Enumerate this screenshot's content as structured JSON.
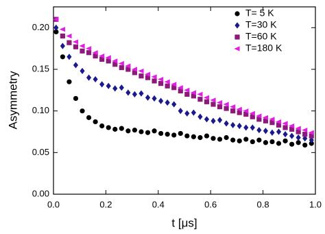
{
  "chart_data": {
    "type": "scatter",
    "xlabel": "t [μs]",
    "ylabel": "Asymmetry",
    "xlim": [
      0,
      1.0
    ],
    "ylim": [
      0,
      0.225
    ],
    "xticks": [
      {
        "value": 0,
        "label": "0.0"
      },
      0.2,
      0.4,
      0.6,
      0.8,
      {
        "value": 1,
        "label": "1.0"
      }
    ],
    "yticks": [
      {
        "value": 0,
        "label": "0.00"
      },
      0.05,
      {
        "value": 0.1,
        "label": "0.10"
      },
      0.15,
      {
        "value": 0.2,
        "label": "0.20"
      }
    ],
    "legend": "upper right",
    "x": [
      0.01,
      0.035,
      0.06,
      0.085,
      0.11,
      0.135,
      0.16,
      0.185,
      0.21,
      0.235,
      0.26,
      0.285,
      0.31,
      0.335,
      0.36,
      0.385,
      0.41,
      0.435,
      0.46,
      0.485,
      0.51,
      0.535,
      0.56,
      0.585,
      0.61,
      0.635,
      0.66,
      0.685,
      0.71,
      0.735,
      0.76,
      0.785,
      0.81,
      0.835,
      0.86,
      0.885,
      0.91,
      0.935,
      0.96,
      0.985
    ],
    "series": [
      {
        "name": "T= 5 K",
        "color": "#000000",
        "marker": "circle",
        "values": [
          0.195,
          0.165,
          0.135,
          0.115,
          0.1,
          0.092,
          0.087,
          0.082,
          0.08,
          0.078,
          0.079,
          0.076,
          0.077,
          0.075,
          0.074,
          0.076,
          0.073,
          0.072,
          0.071,
          0.073,
          0.07,
          0.069,
          0.068,
          0.07,
          0.067,
          0.066,
          0.068,
          0.065,
          0.064,
          0.066,
          0.063,
          0.065,
          0.062,
          0.063,
          0.061,
          0.064,
          0.06,
          0.062,
          0.059,
          0.061
        ]
      },
      {
        "name": "T=30 K",
        "color": "#1a1a8c",
        "marker": "diamond",
        "values": [
          0.2,
          0.178,
          0.165,
          0.155,
          0.148,
          0.14,
          0.138,
          0.132,
          0.13,
          0.127,
          0.128,
          0.122,
          0.12,
          0.121,
          0.116,
          0.115,
          0.112,
          0.11,
          0.108,
          0.1,
          0.097,
          0.098,
          0.093,
          0.09,
          0.088,
          0.089,
          0.085,
          0.083,
          0.082,
          0.08,
          0.08,
          0.077,
          0.076,
          0.074,
          0.075,
          0.072,
          0.07,
          0.068,
          0.067,
          0.065
        ]
      },
      {
        "name": "T=60 K",
        "color": "#8b1a7a",
        "marker": "square",
        "values": [
          0.21,
          0.19,
          0.182,
          0.177,
          0.172,
          0.17,
          0.166,
          0.162,
          0.16,
          0.156,
          0.152,
          0.15,
          0.146,
          0.142,
          0.14,
          0.136,
          0.133,
          0.13,
          0.128,
          0.124,
          0.12,
          0.118,
          0.114,
          0.111,
          0.108,
          0.105,
          0.103,
          0.1,
          0.098,
          0.096,
          0.093,
          0.09,
          0.088,
          0.086,
          0.083,
          0.08,
          0.078,
          0.075,
          0.072,
          0.07
        ]
      },
      {
        "name": "T=180 K",
        "color": "#e020e0",
        "marker": "triangle-left",
        "values": [
          0.21,
          0.198,
          0.19,
          0.183,
          0.178,
          0.175,
          0.17,
          0.166,
          0.164,
          0.16,
          0.157,
          0.154,
          0.15,
          0.148,
          0.144,
          0.141,
          0.138,
          0.135,
          0.132,
          0.128,
          0.125,
          0.122,
          0.12,
          0.116,
          0.113,
          0.11,
          0.108,
          0.105,
          0.102,
          0.1,
          0.097,
          0.094,
          0.092,
          0.09,
          0.087,
          0.085,
          0.082,
          0.079,
          0.077,
          0.074
        ]
      }
    ]
  }
}
